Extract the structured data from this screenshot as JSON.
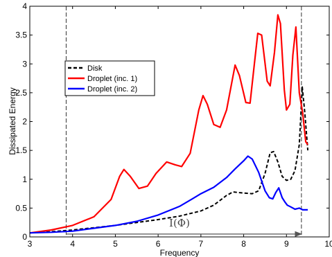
{
  "chart_data": {
    "type": "line",
    "xlabel": "Frequency",
    "ylabel": "Dissipated Energy",
    "xlim": [
      3,
      10
    ],
    "ylim": [
      0,
      4
    ],
    "xticks": [
      3,
      4,
      5,
      6,
      7,
      8,
      9,
      10
    ],
    "yticks": [
      0,
      0.5,
      1,
      1.5,
      2,
      2.5,
      3,
      3.5,
      4
    ],
    "grid": false,
    "legend_position": "upper-left",
    "series": [
      {
        "name": "Disk",
        "color": "#000000",
        "style": "dashed",
        "points": [
          [
            3.0,
            0.07
          ],
          [
            3.5,
            0.09
          ],
          [
            4.0,
            0.12
          ],
          [
            4.5,
            0.16
          ],
          [
            5.0,
            0.2
          ],
          [
            5.5,
            0.25
          ],
          [
            6.0,
            0.3
          ],
          [
            6.5,
            0.36
          ],
          [
            7.0,
            0.45
          ],
          [
            7.3,
            0.55
          ],
          [
            7.6,
            0.72
          ],
          [
            7.75,
            0.78
          ],
          [
            8.0,
            0.76
          ],
          [
            8.2,
            0.75
          ],
          [
            8.35,
            0.8
          ],
          [
            8.5,
            1.1
          ],
          [
            8.62,
            1.46
          ],
          [
            8.7,
            1.48
          ],
          [
            8.8,
            1.3
          ],
          [
            8.9,
            1.05
          ],
          [
            9.0,
            0.98
          ],
          [
            9.1,
            1.0
          ],
          [
            9.2,
            1.15
          ],
          [
            9.3,
            1.6
          ],
          [
            9.37,
            2.6
          ],
          [
            9.43,
            2.15
          ],
          [
            9.5,
            1.5
          ]
        ]
      },
      {
        "name": "Droplet (inc. 1)",
        "color": "#ff0000",
        "style": "solid",
        "points": [
          [
            3.0,
            0.07
          ],
          [
            3.5,
            0.12
          ],
          [
            4.0,
            0.2
          ],
          [
            4.5,
            0.35
          ],
          [
            4.9,
            0.65
          ],
          [
            5.1,
            1.05
          ],
          [
            5.2,
            1.17
          ],
          [
            5.35,
            1.05
          ],
          [
            5.55,
            0.84
          ],
          [
            5.75,
            0.88
          ],
          [
            5.95,
            1.1
          ],
          [
            6.2,
            1.3
          ],
          [
            6.4,
            1.25
          ],
          [
            6.55,
            1.22
          ],
          [
            6.75,
            1.45
          ],
          [
            6.95,
            2.2
          ],
          [
            7.05,
            2.45
          ],
          [
            7.15,
            2.3
          ],
          [
            7.3,
            1.95
          ],
          [
            7.45,
            1.9
          ],
          [
            7.6,
            2.2
          ],
          [
            7.8,
            2.98
          ],
          [
            7.9,
            2.8
          ],
          [
            8.05,
            2.33
          ],
          [
            8.15,
            2.32
          ],
          [
            8.25,
            3.0
          ],
          [
            8.33,
            3.53
          ],
          [
            8.42,
            3.5
          ],
          [
            8.55,
            2.7
          ],
          [
            8.62,
            2.62
          ],
          [
            8.72,
            3.2
          ],
          [
            8.8,
            3.85
          ],
          [
            8.86,
            3.7
          ],
          [
            8.95,
            2.55
          ],
          [
            9.0,
            2.2
          ],
          [
            9.08,
            2.3
          ],
          [
            9.15,
            3.15
          ],
          [
            9.22,
            3.64
          ],
          [
            9.3,
            2.5
          ],
          [
            9.38,
            2.15
          ],
          [
            9.45,
            1.65
          ],
          [
            9.5,
            1.6
          ]
        ]
      },
      {
        "name": "Droplet (inc. 2)",
        "color": "#0000ff",
        "style": "solid",
        "points": [
          [
            3.0,
            0.07
          ],
          [
            3.5,
            0.08
          ],
          [
            4.0,
            0.1
          ],
          [
            4.5,
            0.15
          ],
          [
            5.0,
            0.2
          ],
          [
            5.5,
            0.27
          ],
          [
            6.0,
            0.38
          ],
          [
            6.5,
            0.53
          ],
          [
            6.8,
            0.66
          ],
          [
            7.0,
            0.75
          ],
          [
            7.3,
            0.86
          ],
          [
            7.6,
            1.03
          ],
          [
            7.8,
            1.18
          ],
          [
            8.0,
            1.32
          ],
          [
            8.1,
            1.4
          ],
          [
            8.2,
            1.35
          ],
          [
            8.35,
            1.12
          ],
          [
            8.5,
            0.8
          ],
          [
            8.6,
            0.68
          ],
          [
            8.68,
            0.66
          ],
          [
            8.75,
            0.77
          ],
          [
            8.82,
            0.85
          ],
          [
            8.9,
            0.68
          ],
          [
            8.97,
            0.6
          ],
          [
            9.02,
            0.55
          ],
          [
            9.1,
            0.52
          ],
          [
            9.2,
            0.48
          ],
          [
            9.3,
            0.5
          ],
          [
            9.38,
            0.47
          ],
          [
            9.5,
            0.47
          ]
        ]
      }
    ],
    "vertical_lines": [
      3.85,
      9.35
    ],
    "annotation": {
      "text": "I(Φ)",
      "x": 6.5,
      "y": 0.18,
      "arrow_from": 3.85,
      "arrow_to": 9.35,
      "arrow_y": 0.05
    }
  }
}
